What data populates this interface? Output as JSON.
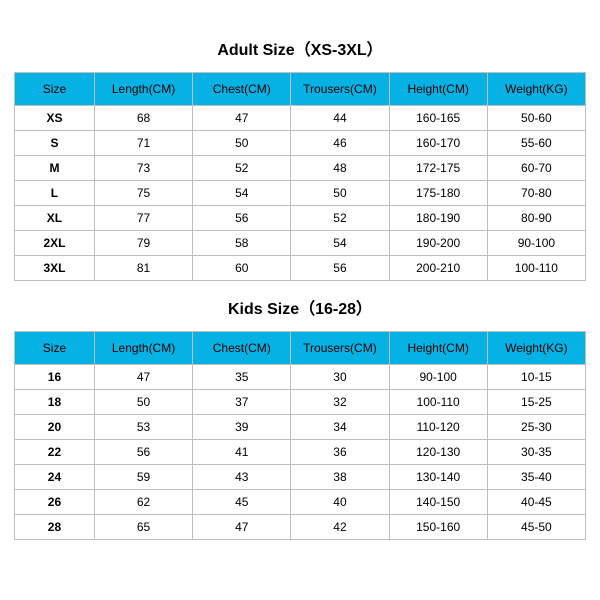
{
  "colors": {
    "header_bg": "#06b2e4",
    "border": "#bfbfbf",
    "text": "#000000",
    "background": "#ffffff"
  },
  "typography": {
    "title_fontsize": 16,
    "title_weight": "bold",
    "header_fontsize": 12,
    "cell_fontsize": 12
  },
  "adult": {
    "title": "Adult Size（XS-3XL）",
    "columns": [
      "Size",
      "Length(CM)",
      "Chest(CM)",
      "Trousers(CM)",
      "Height(CM)",
      "Weight(KG)"
    ],
    "rows": [
      [
        "XS",
        "68",
        "47",
        "44",
        "160-165",
        "50-60"
      ],
      [
        "S",
        "71",
        "50",
        "46",
        "160-170",
        "55-60"
      ],
      [
        "M",
        "73",
        "52",
        "48",
        "172-175",
        "60-70"
      ],
      [
        "L",
        "75",
        "54",
        "50",
        "175-180",
        "70-80"
      ],
      [
        "XL",
        "77",
        "56",
        "52",
        "180-190",
        "80-90"
      ],
      [
        "2XL",
        "79",
        "58",
        "54",
        "190-200",
        "90-100"
      ],
      [
        "3XL",
        "81",
        "60",
        "56",
        "200-210",
        "100-110"
      ]
    ]
  },
  "kids": {
    "title": "Kids Size（16-28）",
    "columns": [
      "Size",
      "Length(CM)",
      "Chest(CM)",
      "Trousers(CM)",
      "Height(CM)",
      "Weight(KG)"
    ],
    "rows": [
      [
        "16",
        "47",
        "35",
        "30",
        "90-100",
        "10-15"
      ],
      [
        "18",
        "50",
        "37",
        "32",
        "100-110",
        "15-25"
      ],
      [
        "20",
        "53",
        "39",
        "34",
        "110-120",
        "25-30"
      ],
      [
        "22",
        "56",
        "41",
        "36",
        "120-130",
        "30-35"
      ],
      [
        "24",
        "59",
        "43",
        "38",
        "130-140",
        "35-40"
      ],
      [
        "26",
        "62",
        "45",
        "40",
        "140-150",
        "40-45"
      ],
      [
        "28",
        "65",
        "47",
        "42",
        "150-160",
        "45-50"
      ]
    ]
  }
}
